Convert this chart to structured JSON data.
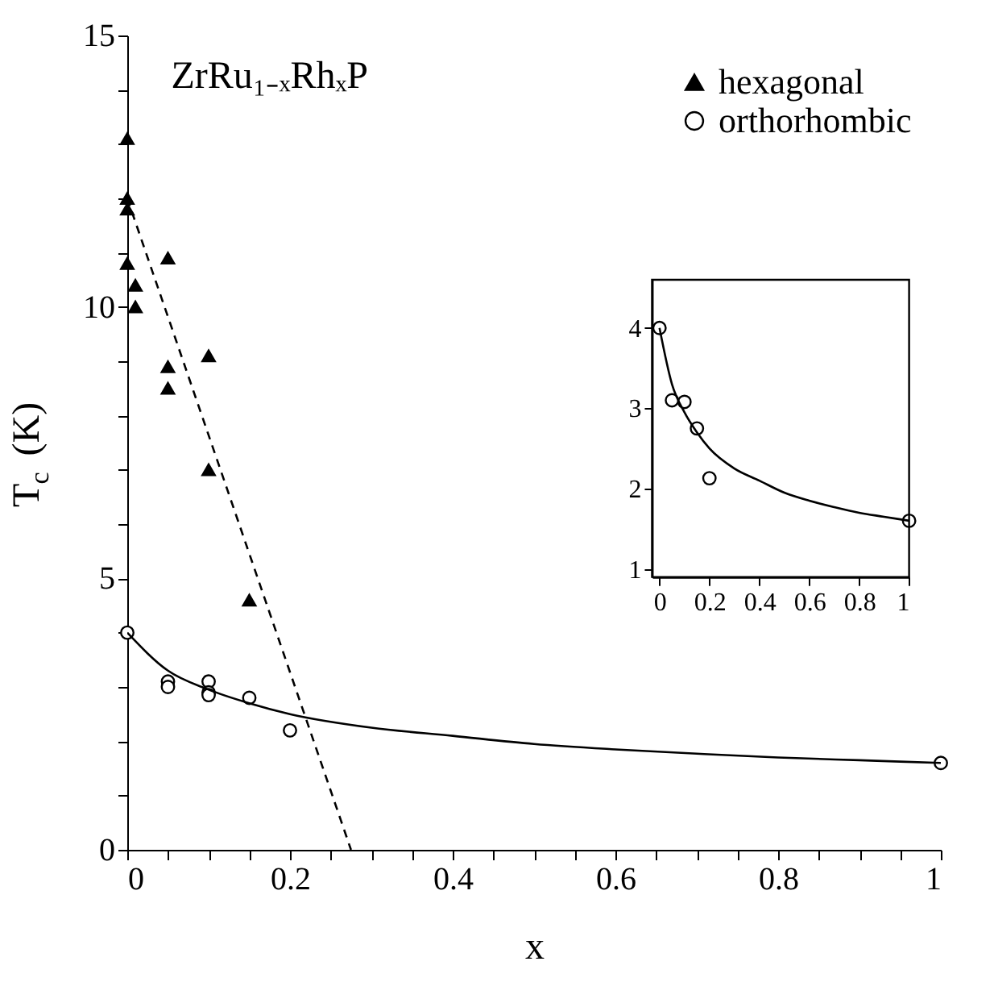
{
  "chart_data": [
    {
      "type": "scatter",
      "xlabel": "x",
      "ylabel": "T$_{c}$ (K)",
      "xlim": [
        0,
        1
      ],
      "ylim": [
        0,
        15
      ],
      "xticks": [
        0,
        {
          "value": 0.05,
          "label": null
        },
        {
          "value": 0.1,
          "label": null
        },
        {
          "value": 0.15,
          "label": null
        },
        0.2,
        {
          "value": 0.25,
          "label": null
        },
        {
          "value": 0.3,
          "label": null
        },
        {
          "value": 0.35,
          "label": null
        },
        0.4,
        {
          "value": 0.45,
          "label": null
        },
        {
          "value": 0.5,
          "label": null
        },
        {
          "value": 0.55,
          "label": null
        },
        0.6,
        {
          "value": 0.65,
          "label": null
        },
        {
          "value": 0.7,
          "label": null
        },
        {
          "value": 0.75,
          "label": null
        },
        0.8,
        {
          "value": 0.85,
          "label": null
        },
        {
          "value": 0.9,
          "label": null
        },
        {
          "value": 0.95,
          "label": null
        },
        1
      ],
      "yticks": [
        0,
        {
          "value": 1,
          "label": null
        },
        {
          "value": 2,
          "label": null
        },
        {
          "value": 3,
          "label": null
        },
        {
          "value": 4,
          "label": null
        },
        5,
        {
          "value": 6,
          "label": null
        },
        {
          "value": 7,
          "label": null
        },
        {
          "value": 8,
          "label": null
        },
        {
          "value": 9,
          "label": null
        },
        10,
        {
          "value": 11,
          "label": null
        },
        {
          "value": 12,
          "label": null
        },
        {
          "value": 13,
          "label": null
        },
        {
          "value": 14,
          "label": null
        },
        15
      ],
      "grid": false,
      "legend": "top right",
      "annotations": [
        "ZrRu₁₋ₓRhₓP"
      ],
      "series": [
        {
          "name": "hexagonal",
          "marker": "triangle",
          "color": "#000000",
          "x": [
            0,
            0,
            0,
            0,
            0.01,
            0.01,
            0.05,
            0.05,
            0.05,
            0.1,
            0.1,
            0.15
          ],
          "values": [
            13.1,
            12.0,
            11.8,
            10.8,
            10.4,
            10.0,
            10.9,
            8.9,
            8.5,
            9.1,
            7.0,
            4.6
          ]
        },
        {
          "type": "line",
          "marker": "none",
          "line_style": "dashed",
          "color": "#000000",
          "x": [
            0,
            0.275
          ],
          "values": [
            12.0,
            0
          ]
        },
        {
          "name": "orthorhombic",
          "marker": "circle",
          "color": "#000000",
          "x": [
            0,
            0.05,
            0.05,
            0.1,
            0.1,
            0.1,
            0.15,
            0.2,
            1
          ],
          "values": [
            4.0,
            3.1,
            3.0,
            3.1,
            2.9,
            2.85,
            2.8,
            2.2,
            1.6
          ]
        },
        {
          "type": "line",
          "marker": "none",
          "line_style": "solid",
          "color": "#000000",
          "x": [
            0,
            0.05,
            0.1,
            0.15,
            0.2,
            0.3,
            0.4,
            0.5,
            0.6,
            0.7,
            0.8,
            0.9,
            1
          ],
          "values": [
            4.0,
            3.3,
            2.95,
            2.7,
            2.5,
            2.25,
            2.1,
            1.95,
            1.85,
            1.77,
            1.7,
            1.65,
            1.6
          ]
        }
      ]
    },
    {
      "type": "scatter",
      "xlim": [
        -0.03,
        1
      ],
      "ylim": [
        0.9,
        4.6
      ],
      "xticks": [
        0,
        0.2,
        0.4,
        0.6,
        0.8,
        1
      ],
      "yticks": [
        1,
        2,
        3,
        4
      ],
      "grid": false,
      "series": [
        {
          "marker": "circle",
          "color": "#000000",
          "x": [
            0,
            0.05,
            0.1,
            0.15,
            0.2,
            1
          ],
          "values": [
            4.0,
            3.1,
            3.08,
            2.75,
            2.13,
            1.6
          ]
        },
        {
          "type": "line",
          "marker": "none",
          "line_style": "solid",
          "color": "#000000",
          "x": [
            0,
            0.05,
            0.1,
            0.15,
            0.2,
            0.3,
            0.4,
            0.5,
            0.6,
            0.7,
            0.8,
            0.9,
            1
          ],
          "values": [
            4.0,
            3.3,
            2.95,
            2.7,
            2.5,
            2.25,
            2.1,
            1.95,
            1.85,
            1.77,
            1.7,
            1.65,
            1.6
          ]
        }
      ]
    }
  ]
}
